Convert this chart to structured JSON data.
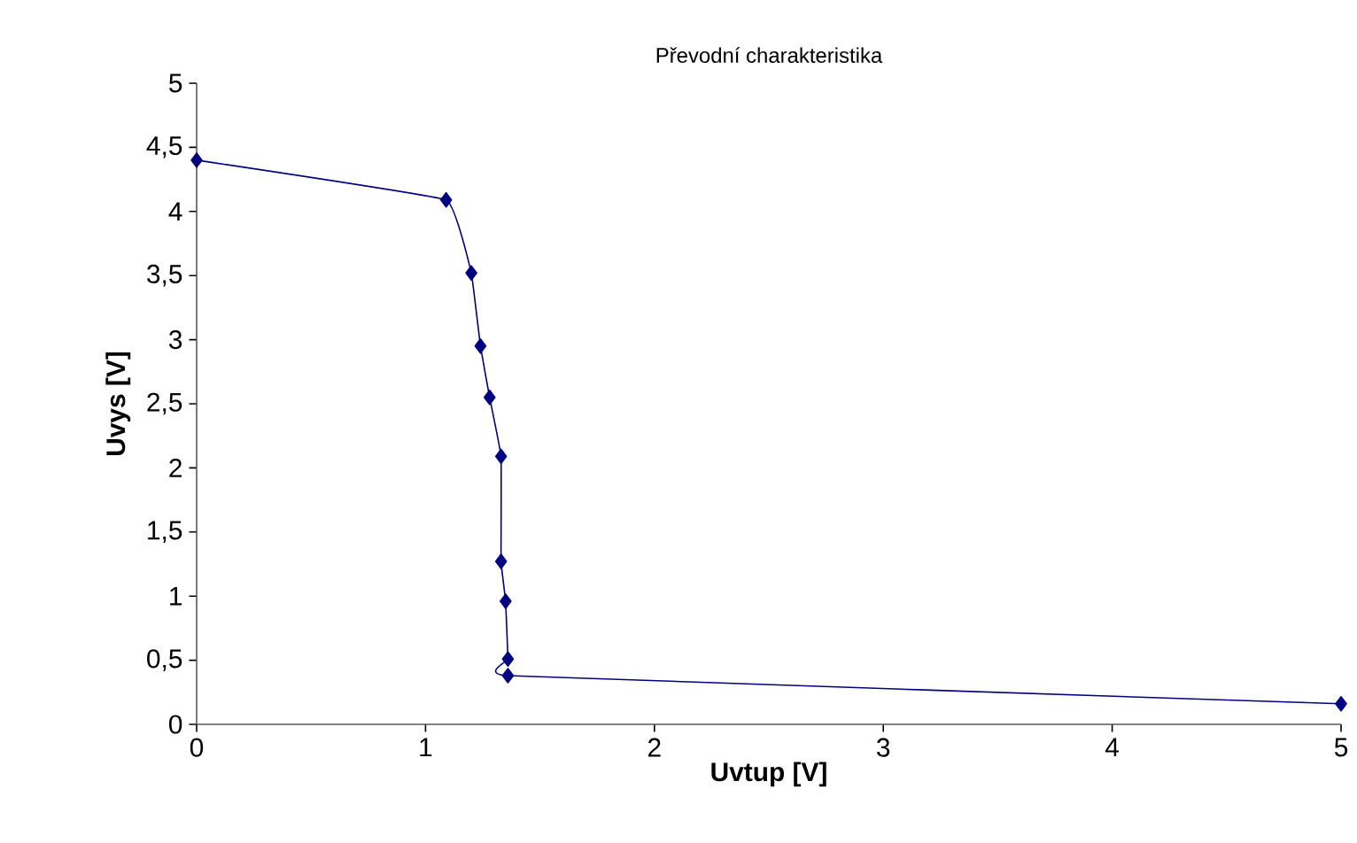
{
  "chart_data": {
    "type": "line",
    "title": "Převodní charakteristika",
    "xlabel": "Uvtup [V]",
    "ylabel": "Uvys [V]",
    "x": [
      0,
      1.09,
      1.2,
      1.24,
      1.28,
      1.33,
      1.33,
      1.35,
      1.36,
      1.36,
      5
    ],
    "series": [
      {
        "color": "#000080",
        "values": [
          4.4,
          4.09,
          3.52,
          2.95,
          2.55,
          2.09,
          1.27,
          0.96,
          0.51,
          0.38,
          0.16
        ]
      }
    ],
    "xlim": [
      0,
      5
    ],
    "ylim": [
      0,
      5
    ],
    "xticks": [
      0,
      1,
      2,
      3,
      4,
      5
    ],
    "yticks": [
      0,
      {
        "value": 0.5,
        "label": "0,5"
      },
      1,
      {
        "value": 1.5,
        "label": "1,5"
      },
      2,
      {
        "value": 2.5,
        "label": "2,5"
      },
      3,
      {
        "value": 3.5,
        "label": "3,5"
      },
      4,
      {
        "value": 4.5,
        "label": "4,5"
      },
      5
    ],
    "grid": false,
    "legend": false,
    "marker": "diamond",
    "line_style": "solid"
  }
}
